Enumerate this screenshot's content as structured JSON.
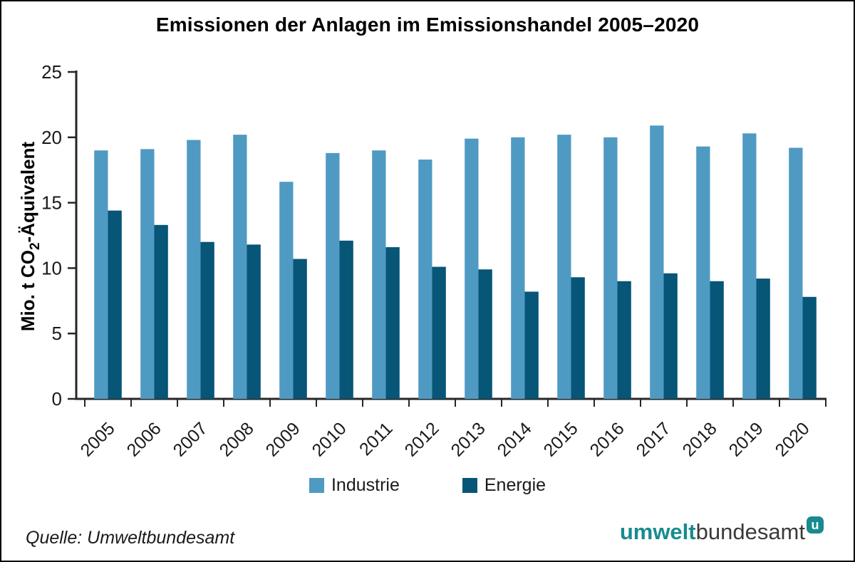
{
  "title": "Emissionen der Anlagen im Emissionshandel 2005–2020",
  "chart_data": {
    "type": "bar",
    "categories": [
      "2005",
      "2006",
      "2007",
      "2008",
      "2009",
      "2010",
      "2011",
      "2012",
      "2013",
      "2014",
      "2015",
      "2016",
      "2017",
      "2018",
      "2019",
      "2020"
    ],
    "series": [
      {
        "name": "Industrie",
        "color": "#4f9ac3",
        "values": [
          19.0,
          19.1,
          19.8,
          20.2,
          16.6,
          18.8,
          19.0,
          18.3,
          19.9,
          20.0,
          20.2,
          20.0,
          20.9,
          19.3,
          20.3,
          19.2
        ]
      },
      {
        "name": "Energie",
        "color": "#075577",
        "values": [
          14.4,
          13.3,
          12.0,
          11.8,
          10.7,
          12.1,
          11.6,
          10.1,
          9.9,
          8.2,
          9.3,
          9.0,
          9.6,
          9.0,
          9.2,
          7.8
        ]
      }
    ],
    "title": "Emissionen der Anlagen im Emissionshandel 2005–2020",
    "xlabel": "",
    "ylabel": "Mio. t CO₂-Äquivalent",
    "ylabel_parts": {
      "pre": "Mio. t CO",
      "sub": "2",
      "post": "-Äquivalent"
    },
    "ylim": [
      0,
      25
    ],
    "yticks": [
      0,
      5,
      10,
      15,
      20,
      25
    ],
    "grid": false,
    "legend_position": "bottom"
  },
  "footer": {
    "source": "Quelle: Umweltbundesamt",
    "logo": {
      "bold": "umwelt",
      "regular": "bundesamt",
      "badge": "u"
    }
  },
  "colors": {
    "axis": "#262626",
    "text": "#1a1a1a",
    "background": "#ffffff",
    "border": "#000000",
    "brand_teal": "#178b90",
    "logo_text": "#3a3a39"
  }
}
